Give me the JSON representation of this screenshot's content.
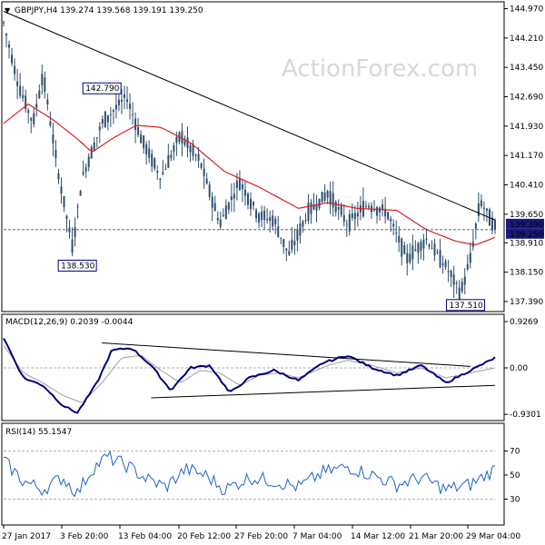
{
  "header": {
    "main_title": "GBPJPY,H4  139.274 139.568 139.191 139.250",
    "macd_title": "MACD(12,26,9) 0.2039 -0.0044",
    "rsi_title": "RSI(14) 55.1547"
  },
  "watermark": "ActionForex.com",
  "colors": {
    "candle": "#2f4f6f",
    "ma": "#d62020",
    "trendline": "#000000",
    "macd": "#000080",
    "signal": "#a0a0a0",
    "rsi": "#1e64c8",
    "current_label_bg": "#1a1a80"
  },
  "chart_data": [
    {
      "type": "candlestick",
      "title": "GBPJPY,H4",
      "ylim": [
        137.2,
        145.1
      ],
      "y_ticks": [
        137.39,
        138.15,
        138.91,
        139.65,
        140.41,
        141.17,
        141.93,
        142.69,
        143.45,
        144.21,
        144.97
      ],
      "y_tick_labels": [
        "137.390",
        "138.150",
        "138.910",
        "139.650",
        "140.410",
        "141.170",
        "141.930",
        "142.690",
        "143.450",
        "144.210",
        "144.970"
      ],
      "current_price": 139.25,
      "current_price_label": "139.250",
      "ask_price": 139.39,
      "ask_price_label": "139.390",
      "annotations": [
        {
          "text": "142.790",
          "value": 142.79
        },
        {
          "text": "138.530",
          "value": 138.53
        },
        {
          "text": "137.510",
          "value": 137.51
        }
      ],
      "moving_average_anchors": [
        [
          0,
          142.0
        ],
        [
          0.05,
          142.5
        ],
        [
          0.1,
          142.1
        ],
        [
          0.15,
          141.6
        ],
        [
          0.18,
          141.25
        ],
        [
          0.22,
          141.6
        ],
        [
          0.27,
          141.95
        ],
        [
          0.32,
          141.9
        ],
        [
          0.38,
          141.5
        ],
        [
          0.45,
          140.75
        ],
        [
          0.52,
          140.35
        ],
        [
          0.6,
          139.8
        ],
        [
          0.66,
          139.95
        ],
        [
          0.72,
          139.8
        ],
        [
          0.8,
          139.75
        ],
        [
          0.86,
          139.25
        ],
        [
          0.92,
          138.95
        ],
        [
          0.96,
          138.85
        ],
        [
          1.0,
          139.05
        ]
      ],
      "trendline": [
        [
          0,
          144.9
        ],
        [
          1,
          139.5
        ]
      ],
      "price_path_anchors": [
        [
          0,
          144.6
        ],
        [
          0.03,
          143.0
        ],
        [
          0.06,
          142.0
        ],
        [
          0.08,
          143.3
        ],
        [
          0.11,
          140.8
        ],
        [
          0.14,
          138.8
        ],
        [
          0.16,
          140.6
        ],
        [
          0.2,
          142.0
        ],
        [
          0.25,
          142.7
        ],
        [
          0.28,
          141.6
        ],
        [
          0.32,
          140.6
        ],
        [
          0.36,
          141.7
        ],
        [
          0.4,
          141.0
        ],
        [
          0.44,
          139.4
        ],
        [
          0.48,
          140.5
        ],
        [
          0.52,
          139.6
        ],
        [
          0.55,
          139.5
        ],
        [
          0.58,
          138.6
        ],
        [
          0.62,
          139.7
        ],
        [
          0.66,
          140.2
        ],
        [
          0.7,
          139.4
        ],
        [
          0.74,
          139.9
        ],
        [
          0.78,
          139.7
        ],
        [
          0.82,
          138.5
        ],
        [
          0.86,
          139.0
        ],
        [
          0.9,
          138.3
        ],
        [
          0.93,
          137.6
        ],
        [
          0.95,
          138.5
        ],
        [
          0.97,
          140.0
        ],
        [
          1.0,
          139.3
        ]
      ]
    },
    {
      "type": "line",
      "title": "MACD(12,26,9)",
      "ylim": [
        -1.0,
        1.0
      ],
      "y_ticks": [
        0.9269,
        0.0,
        -0.9301
      ],
      "y_tick_labels": [
        "0.9269",
        "0.00",
        "-0.9301"
      ],
      "macd_anchors": [
        [
          0,
          0.6
        ],
        [
          0.04,
          -0.2
        ],
        [
          0.08,
          -0.35
        ],
        [
          0.12,
          -0.75
        ],
        [
          0.15,
          -0.9
        ],
        [
          0.19,
          -0.3
        ],
        [
          0.22,
          0.35
        ],
        [
          0.26,
          0.4
        ],
        [
          0.3,
          0.05
        ],
        [
          0.34,
          -0.45
        ],
        [
          0.38,
          0.0
        ],
        [
          0.42,
          0.05
        ],
        [
          0.46,
          -0.5
        ],
        [
          0.5,
          -0.2
        ],
        [
          0.55,
          -0.05
        ],
        [
          0.6,
          -0.25
        ],
        [
          0.65,
          0.1
        ],
        [
          0.7,
          0.25
        ],
        [
          0.75,
          0.0
        ],
        [
          0.8,
          -0.15
        ],
        [
          0.85,
          0.05
        ],
        [
          0.9,
          -0.3
        ],
        [
          0.94,
          -0.1
        ],
        [
          1.0,
          0.2
        ]
      ],
      "signal_anchors": [
        [
          0,
          0.45
        ],
        [
          0.04,
          -0.1
        ],
        [
          0.08,
          -0.3
        ],
        [
          0.12,
          -0.55
        ],
        [
          0.16,
          -0.7
        ],
        [
          0.2,
          -0.3
        ],
        [
          0.24,
          0.2
        ],
        [
          0.28,
          0.25
        ],
        [
          0.32,
          -0.05
        ],
        [
          0.36,
          -0.3
        ],
        [
          0.4,
          -0.05
        ],
        [
          0.44,
          -0.1
        ],
        [
          0.48,
          -0.35
        ],
        [
          0.52,
          -0.15
        ],
        [
          0.56,
          -0.1
        ],
        [
          0.6,
          -0.2
        ],
        [
          0.66,
          0.05
        ],
        [
          0.7,
          0.15
        ],
        [
          0.75,
          0.05
        ],
        [
          0.8,
          -0.1
        ],
        [
          0.85,
          0.0
        ],
        [
          0.9,
          -0.2
        ],
        [
          0.95,
          -0.1
        ],
        [
          1.0,
          0.0
        ]
      ],
      "upper_trendline": [
        [
          0.2,
          0.5
        ],
        [
          0.95,
          0.03
        ]
      ],
      "lower_trendline": [
        [
          0.3,
          -0.6
        ],
        [
          1.0,
          -0.35
        ]
      ]
    },
    {
      "type": "line",
      "title": "RSI(14)",
      "ylim": [
        10,
        90
      ],
      "y_ticks": [
        70,
        50,
        30
      ],
      "y_tick_labels": [
        "70",
        "50",
        "30"
      ],
      "rsi_anchors": [
        [
          0,
          62
        ],
        [
          0.04,
          45
        ],
        [
          0.08,
          38
        ],
        [
          0.12,
          48
        ],
        [
          0.15,
          35
        ],
        [
          0.18,
          55
        ],
        [
          0.21,
          65
        ],
        [
          0.25,
          58
        ],
        [
          0.29,
          47
        ],
        [
          0.33,
          40
        ],
        [
          0.37,
          55
        ],
        [
          0.41,
          50
        ],
        [
          0.45,
          38
        ],
        [
          0.5,
          48
        ],
        [
          0.55,
          45
        ],
        [
          0.6,
          40
        ],
        [
          0.65,
          52
        ],
        [
          0.7,
          57
        ],
        [
          0.75,
          50
        ],
        [
          0.8,
          42
        ],
        [
          0.85,
          48
        ],
        [
          0.9,
          38
        ],
        [
          0.95,
          42
        ],
        [
          1.0,
          55
        ]
      ]
    }
  ],
  "x_axis": {
    "labels": [
      "27 Jan 2017",
      "3 Feb 20:00",
      "13 Feb 04:00",
      "20 Feb 12:00",
      "27 Feb 20:00",
      "7 Mar 04:00",
      "14 Mar 12:00",
      "21 Mar 20:00",
      "29 Mar 04:00"
    ]
  }
}
